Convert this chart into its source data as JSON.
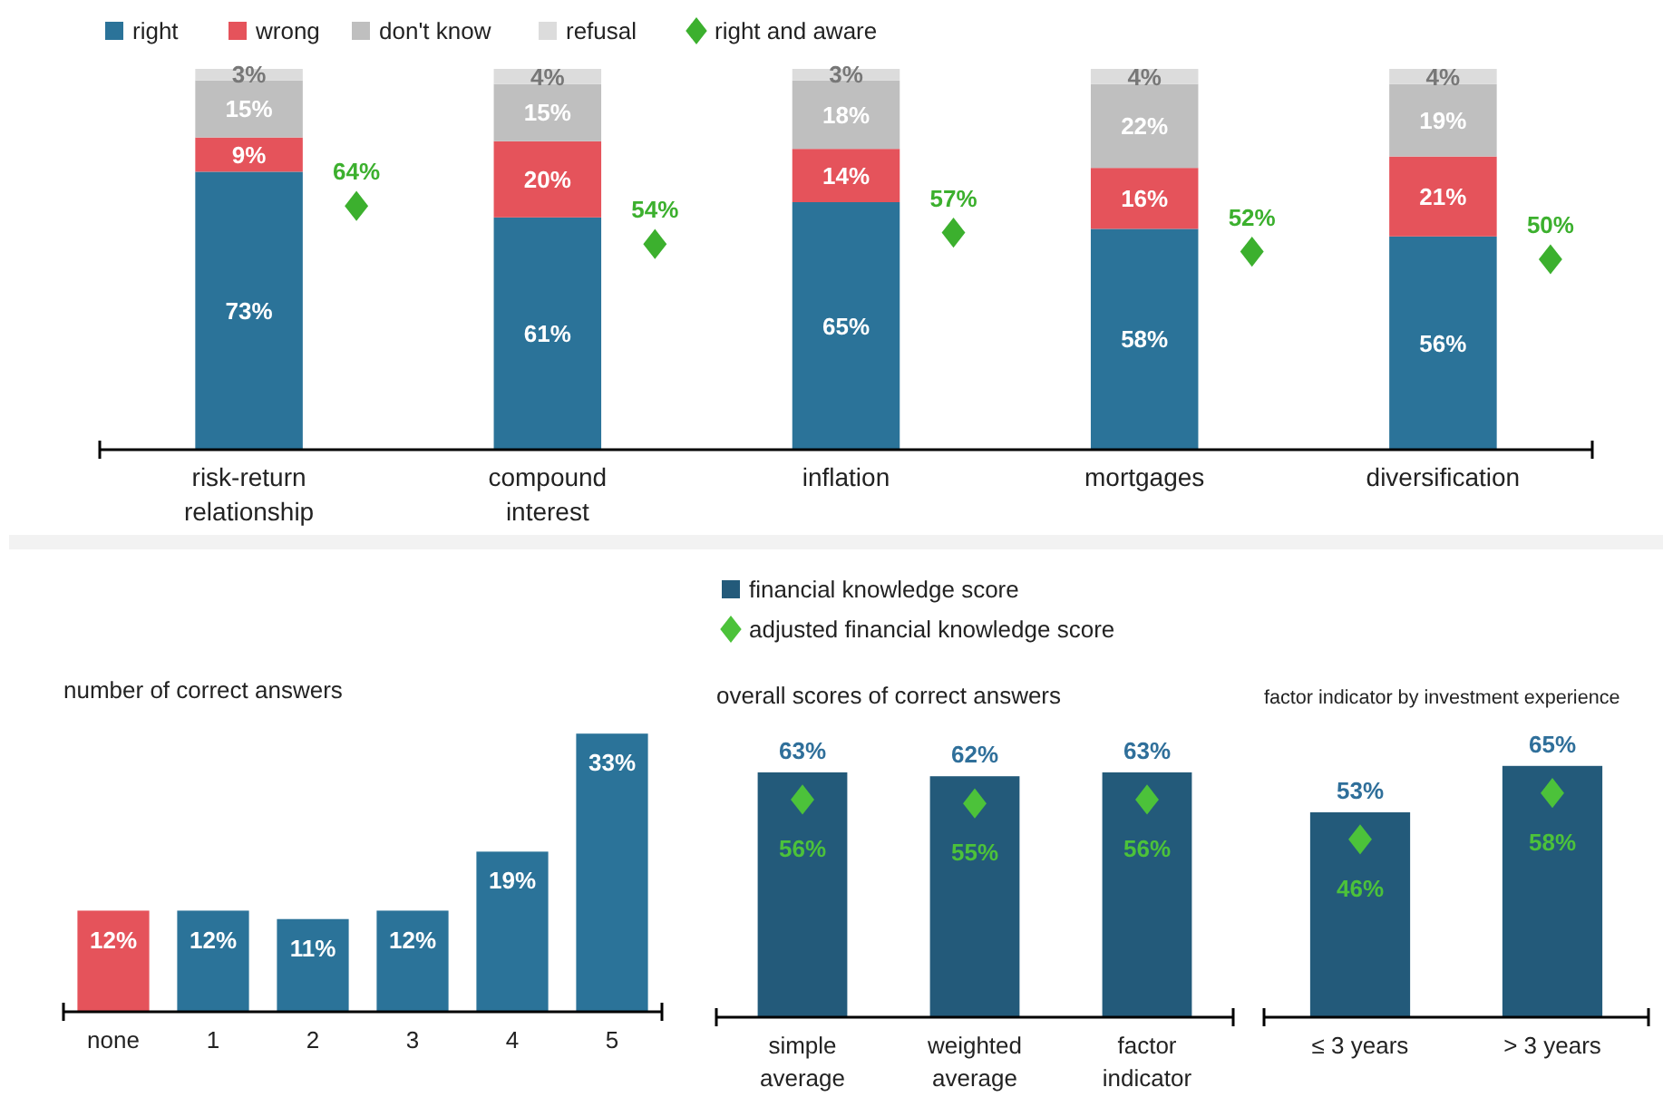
{
  "chart_data": [
    {
      "type": "bar",
      "stacked": true,
      "categories": [
        "risk-return relationship",
        "compound interest",
        "inflation",
        "mortgages",
        "diversification"
      ],
      "series": [
        {
          "name": "right",
          "color": "#2b7399",
          "values": [
            73,
            61,
            65,
            58,
            56
          ],
          "value_labels": [
            "73%",
            "61%",
            "65%",
            "58%",
            "56%"
          ]
        },
        {
          "name": "wrong",
          "color": "#e5535b",
          "values": [
            9,
            20,
            14,
            16,
            21
          ],
          "value_labels": [
            "9%",
            "20%",
            "14%",
            "16%",
            "21%"
          ]
        },
        {
          "name": "don't know",
          "color": "#bfbfbf",
          "values": [
            15,
            15,
            18,
            22,
            19
          ],
          "value_labels": [
            "15%",
            "15%",
            "18%",
            "22%",
            "19%"
          ]
        },
        {
          "name": "refusal",
          "color": "#dcdcdc",
          "values": [
            3,
            4,
            3,
            4,
            4
          ],
          "value_labels": [
            "3%",
            "4%",
            "3%",
            "4%",
            "4%"
          ]
        },
        {
          "name": "right and aware",
          "type": "scatter",
          "marker": "diamond",
          "color": "#3cb02e",
          "x": [
            "risk-return relationship",
            "compound interest",
            "inflation",
            "mortgages",
            "diversification"
          ],
          "values": [
            64,
            54,
            57,
            52,
            50
          ],
          "value_labels": [
            "64%",
            "54%",
            "57%",
            "52%",
            "50%"
          ]
        }
      ],
      "legend": "top"
    },
    {
      "type": "bar",
      "title": "number of correct answers",
      "categories": [
        "none",
        "1",
        "2",
        "3",
        "4",
        "5"
      ],
      "series": [
        {
          "colors": [
            "#e5535b",
            "#2b7399",
            "#2b7399",
            "#2b7399",
            "#2b7399",
            "#2b7399"
          ],
          "values": [
            12,
            12,
            11,
            12,
            19,
            33
          ],
          "value_labels": [
            "12%",
            "12%",
            "11%",
            "12%",
            "19%",
            "33%"
          ]
        }
      ]
    },
    {
      "type": "bar",
      "title": "overall scores of correct answers",
      "categories": [
        "simple average",
        "weighted average",
        "factor indicator"
      ],
      "series": [
        {
          "name": "financial knowledge score",
          "color": "#235a7a",
          "values": [
            63,
            62,
            63
          ],
          "value_labels": [
            "63%",
            "62%",
            "63%"
          ]
        },
        {
          "name": "adjusted financial knowledge score",
          "type": "scatter",
          "marker": "diamond",
          "color": "#4cc23a",
          "x": [
            "simple average",
            "weighted average",
            "factor indicator"
          ],
          "values": [
            56,
            55,
            56
          ],
          "value_labels": [
            "56%",
            "55%",
            "56%"
          ]
        }
      ],
      "legend": "top"
    },
    {
      "type": "bar",
      "title": "factor indicator by investment experience",
      "categories": [
        "≤ 3 years",
        "> 3 years"
      ],
      "series": [
        {
          "color": "#235a7a",
          "values": [
            53,
            65
          ],
          "value_labels": [
            "53%",
            "65%"
          ]
        },
        {
          "type": "scatter",
          "marker": "diamond",
          "color": "#4cc23a",
          "x": [
            "≤ 3 years",
            "> 3 years"
          ],
          "values": [
            46,
            58
          ],
          "value_labels": [
            "46%",
            "58%"
          ]
        }
      ]
    }
  ]
}
